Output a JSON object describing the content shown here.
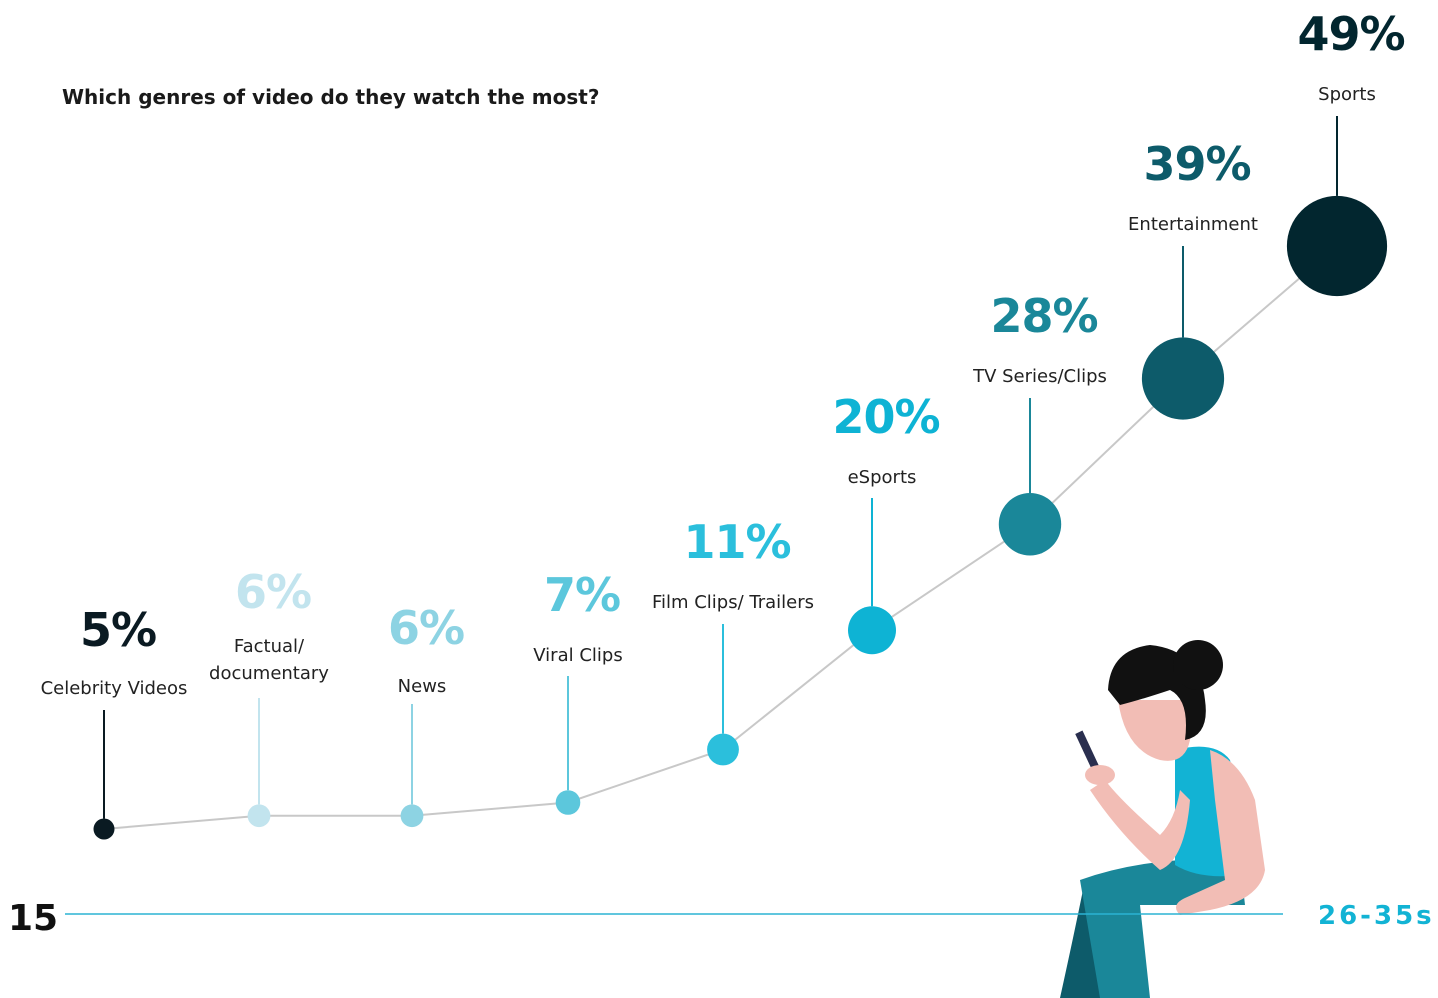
{
  "page_number": "15",
  "section_label": "26-35s",
  "chart_data": {
    "type": "bubble-line",
    "title": "Which genres of video do they watch the most?",
    "categories": [
      "Celebrity Videos",
      "Factual/\ndocumentary",
      "News",
      "Viral Clips",
      "Film Clips/ Trailers",
      "eSports",
      "TV Series/Clips",
      "Entertainment",
      "Sports"
    ],
    "values": [
      5,
      6,
      6,
      7,
      11,
      20,
      28,
      39,
      49
    ],
    "value_labels": [
      "5%",
      "6%",
      "6%",
      "7%",
      "11%",
      "20%",
      "28%",
      "39%",
      "49%"
    ],
    "colors": [
      "#0a1a22",
      "#c2e4ee",
      "#8dd3e3",
      "#5cc7dc",
      "#2bbfdc",
      "#0eb3d4",
      "#1a8799",
      "#0d5b6a",
      "#02262f"
    ],
    "ylim": [
      5,
      49
    ]
  }
}
